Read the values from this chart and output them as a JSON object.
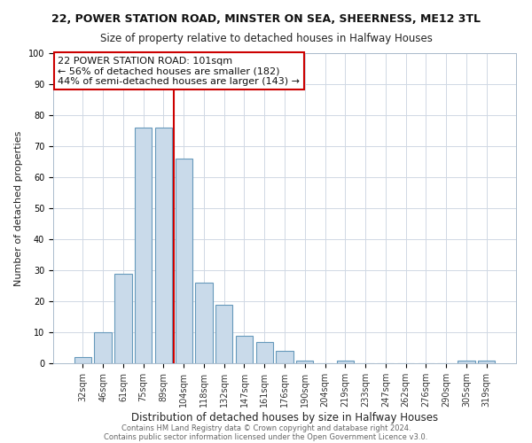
{
  "title_line1": "22, POWER STATION ROAD, MINSTER ON SEA, SHEERNESS, ME12 3TL",
  "title_line2": "Size of property relative to detached houses in Halfway Houses",
  "xlabel": "Distribution of detached houses by size in Halfway Houses",
  "ylabel": "Number of detached properties",
  "bar_labels": [
    "32sqm",
    "46sqm",
    "61sqm",
    "75sqm",
    "89sqm",
    "104sqm",
    "118sqm",
    "132sqm",
    "147sqm",
    "161sqm",
    "176sqm",
    "190sqm",
    "204sqm",
    "219sqm",
    "233sqm",
    "247sqm",
    "262sqm",
    "276sqm",
    "290sqm",
    "305sqm",
    "319sqm"
  ],
  "bar_values": [
    2,
    10,
    29,
    76,
    76,
    66,
    26,
    19,
    9,
    7,
    4,
    1,
    0,
    1,
    0,
    0,
    0,
    0,
    0,
    1,
    1
  ],
  "bar_color": "#c9daea",
  "bar_edge_color": "#6699bb",
  "vline_x_index": 4.5,
  "vline_color": "#cc0000",
  "ylim": [
    0,
    100
  ],
  "yticks": [
    0,
    10,
    20,
    30,
    40,
    50,
    60,
    70,
    80,
    90,
    100
  ],
  "annotation_title": "22 POWER STATION ROAD: 101sqm",
  "annotation_line2": "← 56% of detached houses are smaller (182)",
  "annotation_line3": "44% of semi-detached houses are larger (143) →",
  "annotation_box_facecolor": "#ffffff",
  "annotation_box_edgecolor": "#cc0000",
  "footer_line1": "Contains HM Land Registry data © Crown copyright and database right 2024.",
  "footer_line2": "Contains public sector information licensed under the Open Government Licence v3.0.",
  "fig_facecolor": "#ffffff",
  "plot_facecolor": "#ffffff",
  "grid_color": "#d0d8e4",
  "title1_fontsize": 9,
  "title2_fontsize": 8.5,
  "xlabel_fontsize": 8.5,
  "ylabel_fontsize": 8,
  "tick_fontsize": 7,
  "ann_fontsize": 8,
  "footer_fontsize": 6
}
